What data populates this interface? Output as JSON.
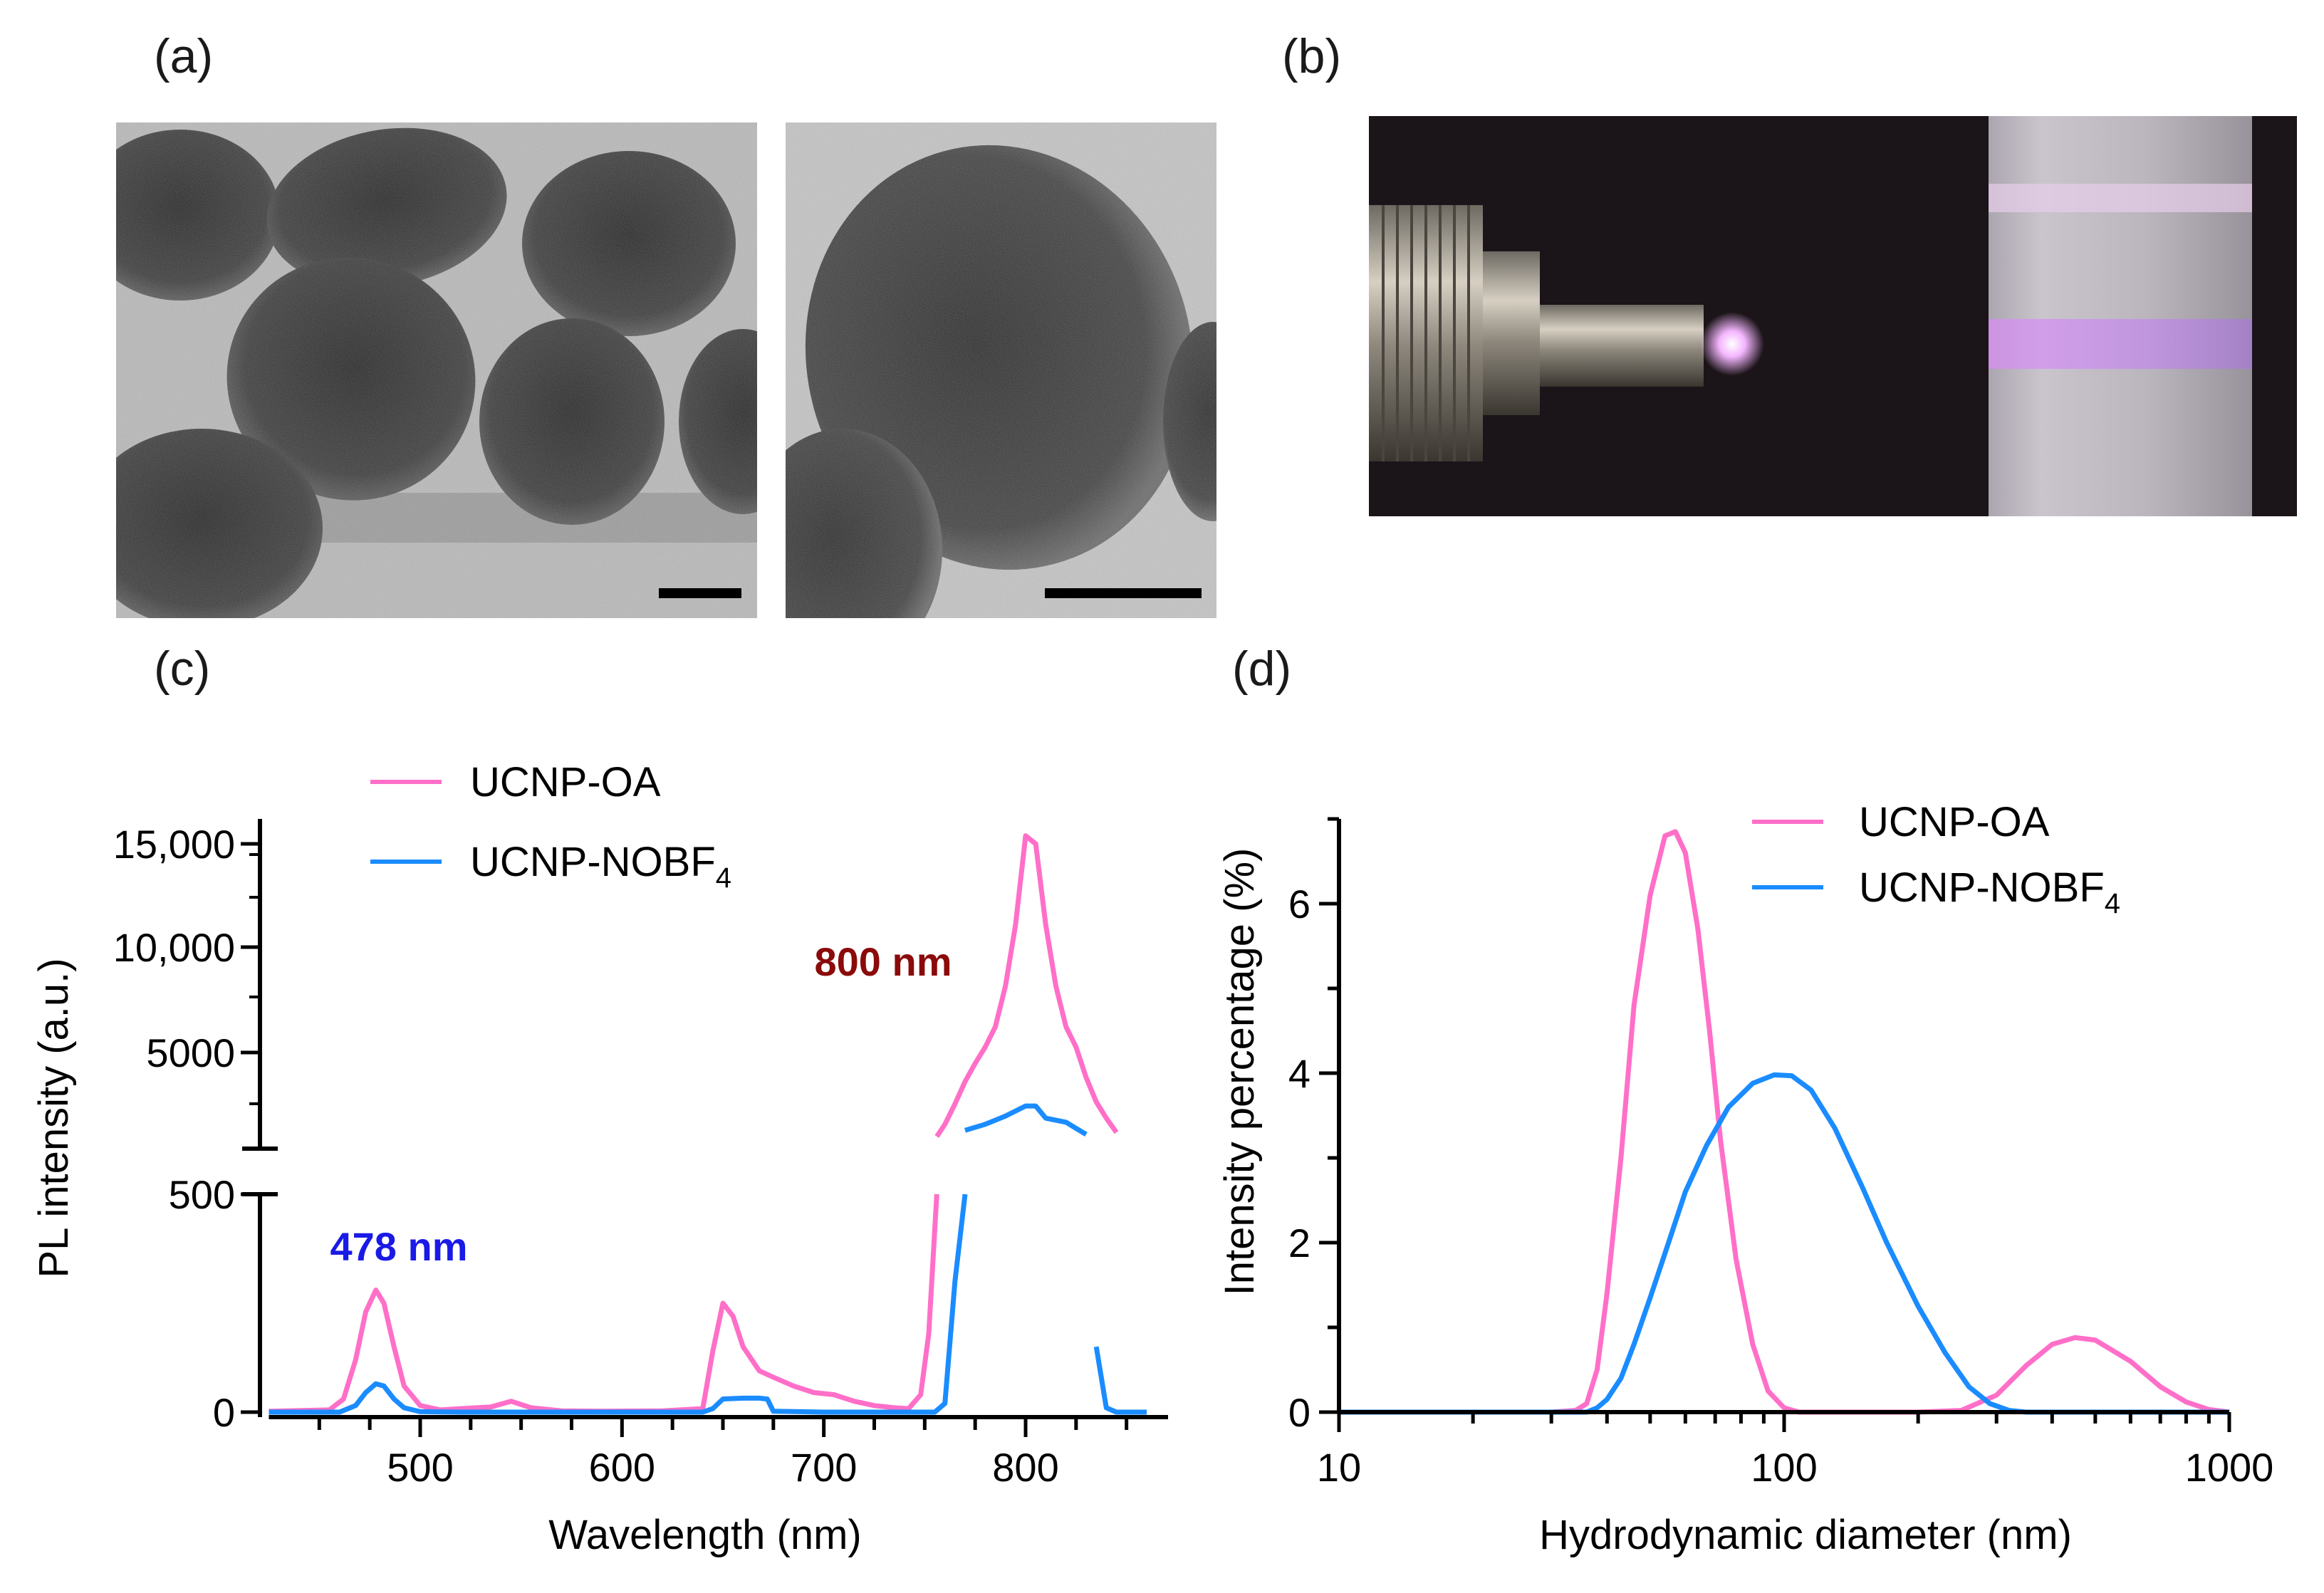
{
  "panels": {
    "a": "(a)",
    "b": "(b)",
    "c": "(c)",
    "d": "(d)"
  },
  "colors": {
    "oa": "#ff6fc8",
    "nobf4": "#1a8cff",
    "label_478": "#1a1ae6",
    "label_800": "#8b0a0a"
  },
  "chart_data": [
    {
      "type": "line",
      "panel": "(c)",
      "xlabel": "Wavelength (nm)",
      "ylabel": "PL intensity (a.u.)",
      "xlim": [
        425,
        860
      ],
      "xticks": [
        500,
        600,
        700,
        800
      ],
      "y_axis_break": {
        "lower_range": [
          0,
          500
        ],
        "upper_range": [
          0,
          16000
        ]
      },
      "yticks_lower": [
        0,
        500
      ],
      "yticks_upper": [
        5000,
        10000,
        15000
      ],
      "ytick_labels": [
        "0",
        "500",
        "5000",
        "10,000",
        "15,000"
      ],
      "annotations": [
        {
          "text": "478 nm",
          "x": 478,
          "color": "#1a1ae6"
        },
        {
          "text": "800 nm",
          "x": 800,
          "color": "#8b0a0a"
        }
      ],
      "legend": {
        "position": "top-left",
        "entries": [
          "UCNP-OA",
          "UCNP-NOBF4"
        ]
      },
      "series": [
        {
          "name": "UCNP-OA",
          "color": "#ff6fc8",
          "x": [
            425,
            455,
            462,
            468,
            473,
            478,
            482,
            487,
            492,
            500,
            510,
            520,
            535,
            545,
            555,
            570,
            590,
            620,
            640,
            645,
            650,
            655,
            660,
            668,
            675,
            685,
            695,
            705,
            715,
            725,
            735,
            742,
            748,
            752,
            756,
            760,
            765,
            770,
            775,
            780,
            785,
            790,
            795,
            800,
            805,
            810,
            815,
            820,
            825,
            830,
            835,
            840,
            845,
            850
          ],
          "y": [
            2,
            5,
            30,
            120,
            230,
            280,
            250,
            150,
            60,
            15,
            5,
            8,
            12,
            25,
            10,
            3,
            2,
            3,
            8,
            140,
            250,
            220,
            150,
            95,
            80,
            60,
            45,
            40,
            25,
            15,
            10,
            8,
            40,
            180,
            600,
            1200,
            2200,
            3300,
            4200,
            5000,
            6000,
            8000,
            11000,
            15400,
            15000,
            11000,
            8000,
            6000,
            5000,
            3500,
            2300,
            1500,
            800,
            160
          ]
        },
        {
          "name": "UCNP-NOBF4",
          "color": "#1a8cff",
          "x": [
            425,
            460,
            468,
            473,
            478,
            482,
            487,
            492,
            500,
            520,
            560,
            600,
            640,
            645,
            650,
            660,
            668,
            672,
            675,
            700,
            740,
            755,
            760,
            765,
            770,
            780,
            790,
            800,
            805,
            810,
            820,
            825,
            830,
            835,
            840,
            845,
            860
          ],
          "y": [
            0,
            0,
            15,
            45,
            65,
            60,
            30,
            10,
            1,
            0,
            0,
            0,
            0,
            8,
            30,
            32,
            32,
            30,
            2,
            0,
            0,
            0,
            20,
            300,
            900,
            1200,
            1600,
            2100,
            2100,
            1500,
            1300,
            1000,
            700,
            150,
            10,
            0,
            0
          ]
        }
      ]
    },
    {
      "type": "line",
      "panel": "(d)",
      "xlabel": "Hydrodynamic diameter (nm)",
      "ylabel": "Intensity percentage (%)",
      "xscale": "log",
      "xlim": [
        10,
        1000
      ],
      "ylim": [
        0,
        7
      ],
      "xticks": [
        10,
        100,
        1000
      ],
      "yticks": [
        0,
        2,
        4,
        6
      ],
      "legend": {
        "position": "top-right",
        "entries": [
          "UCNP-OA",
          "UCNP-NOBF4"
        ]
      },
      "series": [
        {
          "name": "UCNP-OA",
          "color": "#ff6fc8",
          "x": [
            10,
            30,
            34,
            36,
            38,
            40,
            43,
            46,
            50,
            54,
            57,
            60,
            64,
            68,
            72,
            78,
            85,
            92,
            100,
            108,
            115,
            130,
            160,
            200,
            250,
            300,
            350,
            400,
            450,
            500,
            600,
            700,
            800,
            900,
            1000
          ],
          "y": [
            0,
            0,
            0.02,
            0.1,
            0.5,
            1.4,
            3.0,
            4.8,
            6.1,
            6.8,
            6.85,
            6.6,
            5.7,
            4.5,
            3.2,
            1.8,
            0.8,
            0.25,
            0.05,
            0,
            0,
            0,
            0,
            0,
            0.02,
            0.2,
            0.55,
            0.8,
            0.88,
            0.85,
            0.6,
            0.3,
            0.12,
            0.03,
            0
          ]
        },
        {
          "name": "UCNP-NOBF4",
          "color": "#1a8cff",
          "x": [
            10,
            36,
            38,
            40,
            43,
            46,
            50,
            55,
            60,
            67,
            75,
            85,
            95,
            104,
            115,
            130,
            150,
            170,
            200,
            230,
            260,
            290,
            320,
            350,
            1000
          ],
          "y": [
            0,
            0,
            0.05,
            0.15,
            0.4,
            0.8,
            1.35,
            2.0,
            2.6,
            3.15,
            3.6,
            3.88,
            3.98,
            3.97,
            3.8,
            3.35,
            2.65,
            2.0,
            1.25,
            0.7,
            0.3,
            0.1,
            0.02,
            0,
            0
          ]
        }
      ]
    }
  ]
}
